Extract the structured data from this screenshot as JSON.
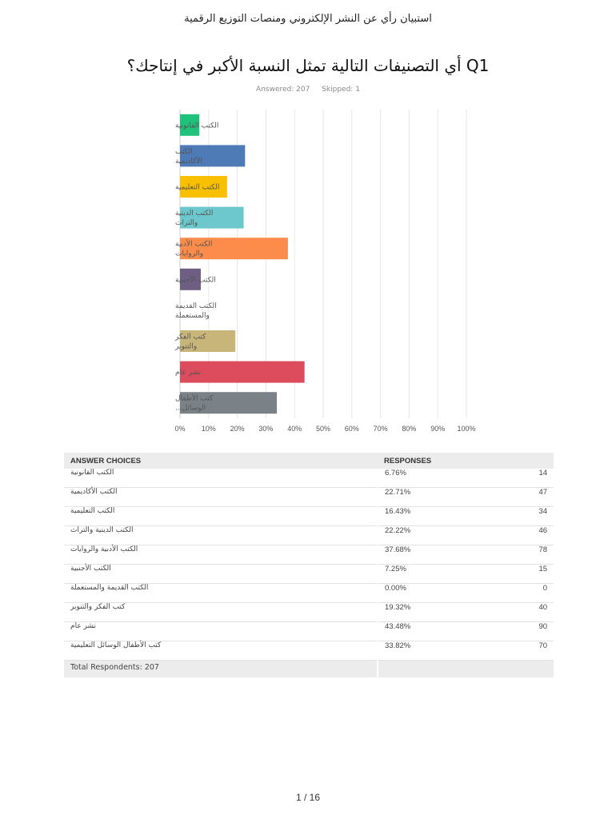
{
  "header": {
    "survey_title": "استبيان رأي عن النشر الإلكتروني ومنصات التوزيع الرقمية",
    "question_title": "Q1 أي التصنيفات التالية تمثل النسبة الأكبر في إنتاجك؟",
    "answered": "Answered: 207",
    "skipped": "Skipped: 1"
  },
  "chart_data": {
    "type": "bar",
    "orientation": "horizontal",
    "categories": [
      "الكتب القانونية",
      "الكتب الأكاديمية",
      "الكتب التعليمية",
      "الكتب الدينية والتراث",
      "الكتب الأدبية والروايات",
      "الكتب الأجنبية",
      "الكتب القديمة والمستعملة",
      "كتب الفكر والتنوير",
      "نشر عام",
      "كتب الأطفال الوسائل..."
    ],
    "category_display": [
      [
        "الكتب القانونية"
      ],
      [
        "الكتب",
        "الأكاديمية"
      ],
      [
        "الكتب التعليمية"
      ],
      [
        "الكتب الدينية",
        "والتراث"
      ],
      [
        "الكتب الأدبية",
        "والروايات"
      ],
      [
        "الكتب الأجنبية"
      ],
      [
        "الكتب القديمة",
        "والمستعملة"
      ],
      [
        "كتب الفكر",
        "والتنوير"
      ],
      [
        "نشر عام"
      ],
      [
        "كتب الأطفال",
        "الوسائل..."
      ]
    ],
    "values": [
      6.76,
      22.71,
      16.43,
      22.22,
      37.68,
      7.25,
      0.0,
      19.32,
      43.48,
      33.82
    ],
    "colors": [
      "#1fc27a",
      "#4e7ab5",
      "#f8c000",
      "#6cc8cc",
      "#fb8c4c",
      "#6e5e84",
      "#d9d9d9",
      "#c8b57a",
      "#dc4c5c",
      "#7a8288"
    ],
    "xlim": [
      0,
      100
    ],
    "xticks": [
      "0%",
      "10%",
      "20%",
      "30%",
      "40%",
      "50%",
      "60%",
      "70%",
      "80%",
      "90%",
      "100%"
    ],
    "grid": true
  },
  "table": {
    "headers": [
      "ANSWER CHOICES",
      "RESPONSES"
    ],
    "rows": [
      {
        "choice": "الكتب القانونية",
        "percent": "6.76%",
        "count": "14"
      },
      {
        "choice": "الكتب الأكاديمية",
        "percent": "22.71%",
        "count": "47"
      },
      {
        "choice": "الكتب التعليمية",
        "percent": "16.43%",
        "count": "34"
      },
      {
        "choice": "الكتب الدينية والتراث",
        "percent": "22.22%",
        "count": "46"
      },
      {
        "choice": "الكتب الأدبية والروايات",
        "percent": "37.68%",
        "count": "78"
      },
      {
        "choice": "الكتب الأجنبية",
        "percent": "7.25%",
        "count": "15"
      },
      {
        "choice": "الكتب القديمة والمستعملة",
        "percent": "0.00%",
        "count": "0"
      },
      {
        "choice": "كتب الفكر والتنوير",
        "percent": "19.32%",
        "count": "40"
      },
      {
        "choice": "نشر عام",
        "percent": "43.48%",
        "count": "90"
      },
      {
        "choice": "كتب الأطفال الوسائل التعليمية",
        "percent": "33.82%",
        "count": "70"
      }
    ],
    "total": "Total Respondents: 207"
  },
  "footer": {
    "page": "1 / 16"
  }
}
